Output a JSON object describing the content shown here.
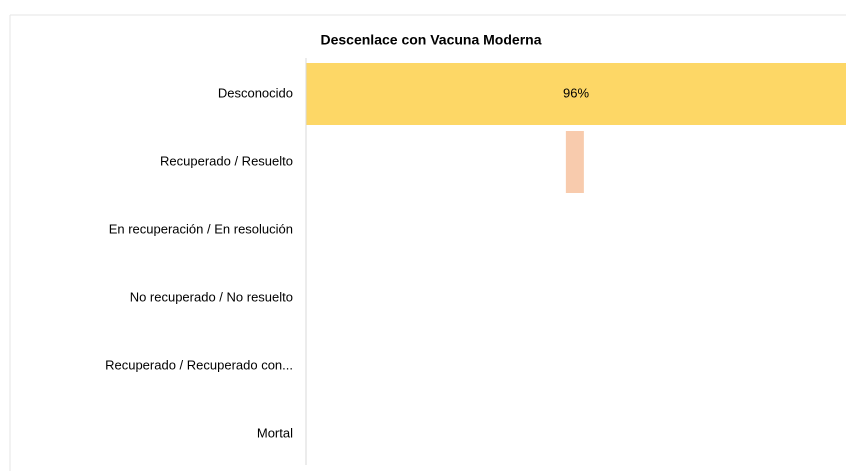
{
  "chart_data": {
    "type": "floating-bar",
    "title": "Descenlace con Vacuna Moderna",
    "categories": [
      "Desconocido",
      "Recuperado / Resuelto",
      "En recuperación / En resolución",
      "No recuperado / No resuelto",
      "Recuperado / Recuperado con...",
      "Mortal"
    ],
    "starts": [
      0,
      46.2,
      0,
      0,
      0,
      0
    ],
    "values": [
      96,
      3.2,
      0,
      0,
      0,
      0
    ],
    "value_labels": [
      "96%",
      null,
      null,
      null,
      null,
      null
    ],
    "colors": [
      "#fdd766",
      "#f8cbad",
      "#f8cbad",
      "#f8cbad",
      "#f8cbad",
      "#f8cbad"
    ],
    "xlim": [
      0,
      96
    ]
  }
}
